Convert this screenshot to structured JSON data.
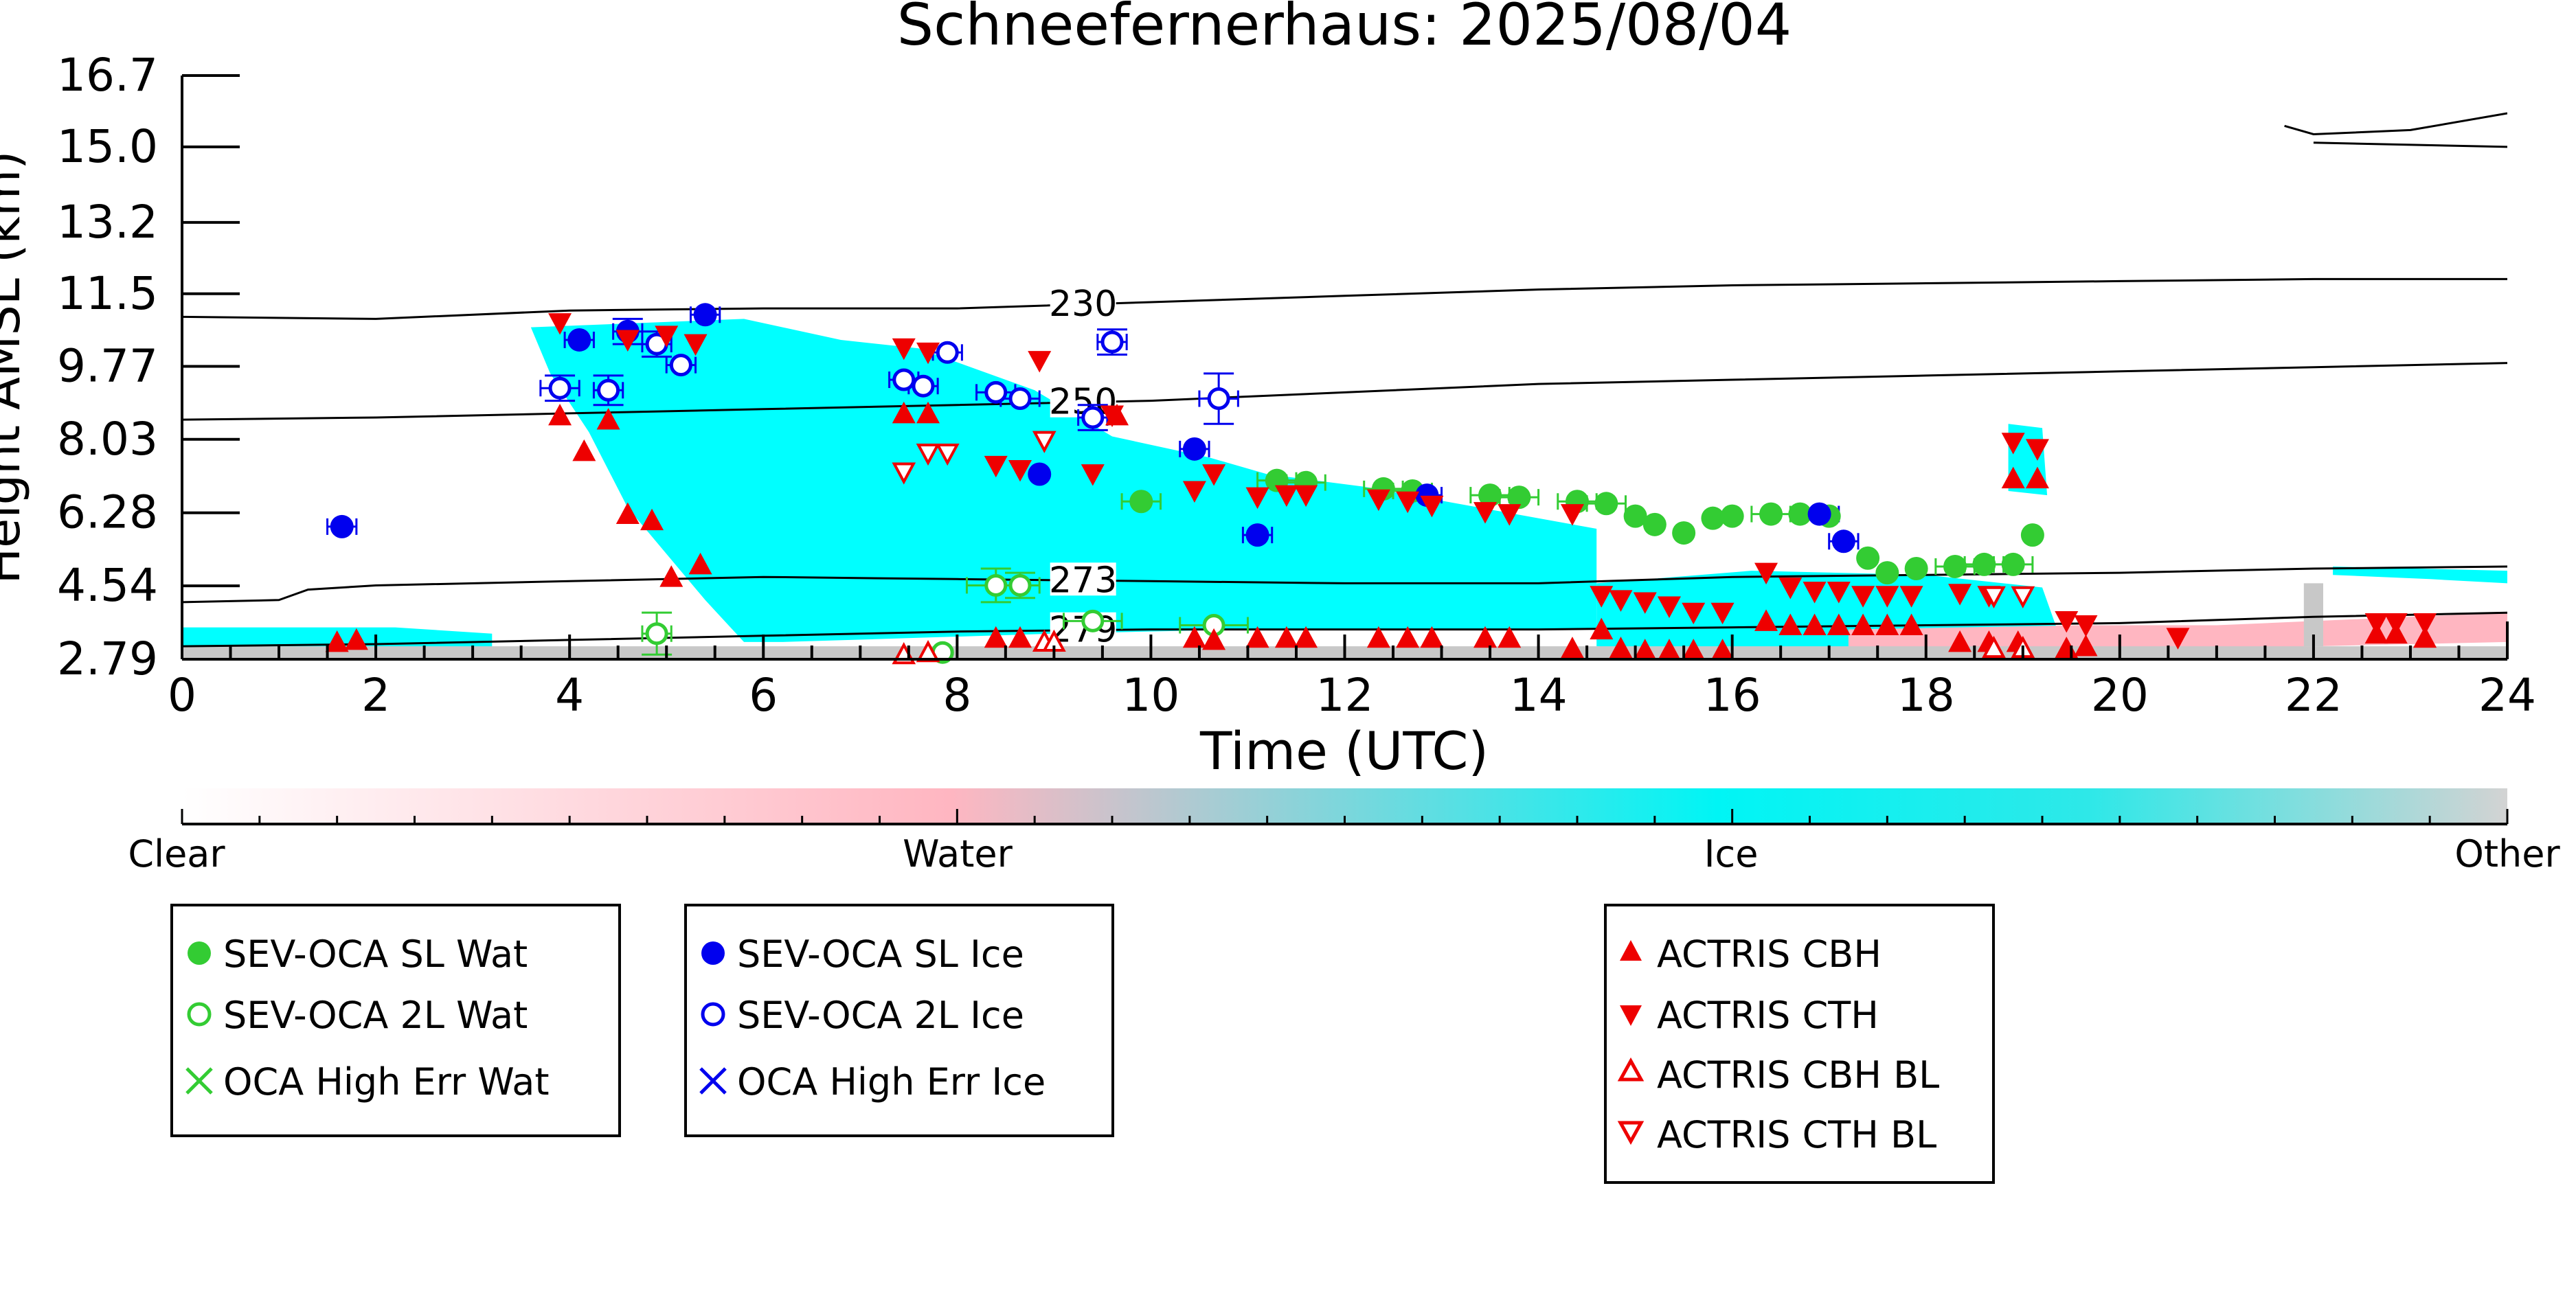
{
  "chart_data": {
    "type": "scatter",
    "title": "Schneefernerhaus: 2025/08/04",
    "xlabel": "Time (UTC)",
    "ylabel": "Height AMSL (km)",
    "xlim": [
      0,
      24
    ],
    "ylim": [
      2.79,
      16.7
    ],
    "x_ticks": [
      0,
      2,
      4,
      6,
      8,
      10,
      12,
      14,
      16,
      18,
      20,
      22,
      24
    ],
    "y_ticks": [
      2.79,
      4.54,
      6.28,
      8.03,
      9.77,
      11.5,
      13.2,
      15.0,
      16.7
    ],
    "y_tick_labels": [
      "2.79",
      "4.54",
      "6.28",
      "8.03",
      "9.77",
      "11.5",
      "13.2",
      "15.0",
      "16.7"
    ],
    "grid": false,
    "colorbar": {
      "labels": [
        "Clear",
        "Water",
        "Ice",
        "Other"
      ],
      "colors": [
        "#ffffff",
        "#ffb6c1",
        "#00ffff",
        "#d3d3d3"
      ]
    },
    "background_field": {
      "description": "cloud phase classification",
      "colors": {
        "water": "#ffb6c1",
        "ice": "#00ffff",
        "other": "#c8c8c8"
      }
    },
    "contours": [
      {
        "label": "230",
        "label_x": 9.3,
        "x": [
          0,
          2,
          4,
          6,
          8,
          10,
          12,
          14,
          16,
          18,
          20,
          22,
          24
        ],
        "y": [
          10.95,
          10.9,
          11.1,
          11.15,
          11.15,
          11.3,
          11.45,
          11.6,
          11.7,
          11.75,
          11.8,
          11.85,
          11.85
        ]
      },
      {
        "label": "250",
        "label_x": 9.3,
        "x": [
          0,
          2,
          4,
          6,
          8,
          10,
          12,
          14,
          16,
          18,
          20,
          22,
          24
        ],
        "y": [
          8.5,
          8.55,
          8.65,
          8.75,
          8.85,
          8.95,
          9.15,
          9.35,
          9.45,
          9.55,
          9.65,
          9.75,
          9.85
        ]
      },
      {
        "label": "273",
        "label_x": 9.3,
        "x": [
          0,
          1,
          1.3,
          2,
          4,
          6,
          8,
          10,
          12,
          14,
          16,
          18,
          20,
          22,
          24
        ],
        "y": [
          4.15,
          4.2,
          4.45,
          4.55,
          4.65,
          4.75,
          4.7,
          4.65,
          4.6,
          4.6,
          4.75,
          4.8,
          4.85,
          4.95,
          5.0
        ]
      },
      {
        "label": "279",
        "label_x": 9.3,
        "x": [
          0,
          2,
          4,
          6,
          8,
          10,
          12,
          14,
          16,
          18,
          20,
          22,
          24
        ],
        "y": [
          3.1,
          3.15,
          3.25,
          3.35,
          3.45,
          3.5,
          3.5,
          3.5,
          3.55,
          3.6,
          3.65,
          3.8,
          3.9
        ]
      },
      {
        "label": "",
        "x": [
          21.7,
          22,
          23,
          24
        ],
        "y": [
          15.5,
          15.3,
          15.4,
          15.8
        ]
      },
      {
        "label": "",
        "x": [
          22,
          24
        ],
        "y": [
          15.1,
          15.0
        ]
      }
    ],
    "legend_boxes": [
      [
        "SEV-OCA SL Wat",
        "SEV-OCA 2L Wat",
        "OCA High Err Wat"
      ],
      [
        "SEV-OCA SL Ice",
        "SEV-OCA 2L Ice",
        "OCA High Err Ice"
      ],
      [
        "ACTRIS CBH",
        "ACTRIS CTH",
        "ACTRIS CBH BL",
        "ACTRIS CTH BL"
      ]
    ],
    "series": [
      {
        "name": "SEV-OCA SL Wat",
        "marker": "filled-circle",
        "color": "#33cc33",
        "x": [
          9.9,
          11.3,
          11.6,
          12.4,
          12.7,
          13.5,
          13.8,
          14.4,
          14.7,
          15.0,
          15.2,
          15.5,
          15.8,
          16.0,
          16.4,
          16.7,
          17.0,
          17.4,
          17.6,
          17.9,
          18.3,
          18.6,
          18.9,
          19.1
        ],
        "y": [
          6.55,
          7.05,
          7.0,
          6.85,
          6.8,
          6.7,
          6.65,
          6.55,
          6.5,
          6.2,
          6.0,
          5.8,
          6.15,
          6.2,
          6.25,
          6.25,
          6.2,
          5.2,
          4.85,
          4.95,
          5.0,
          5.05,
          5.05,
          5.75
        ]
      },
      {
        "name": "SEV-OCA 2L Wat",
        "marker": "open-circle",
        "color": "#33cc33",
        "x": [
          4.9,
          7.85,
          8.4,
          8.65,
          9.4,
          10.65
        ],
        "y": [
          3.4,
          2.95,
          4.55,
          4.55,
          3.7,
          3.6
        ]
      },
      {
        "name": "OCA High Err Wat",
        "marker": "x",
        "color": "#33cc33",
        "x": [],
        "y": []
      },
      {
        "name": "SEV-OCA SL Ice",
        "marker": "filled-circle",
        "color": "#0000ee",
        "x": [
          1.65,
          4.1,
          4.6,
          5.4,
          8.85,
          10.45,
          11.1,
          12.85,
          16.9,
          17.15
        ],
        "y": [
          5.95,
          10.4,
          10.6,
          11.0,
          7.2,
          7.8,
          5.75,
          6.7,
          6.25,
          5.6
        ]
      },
      {
        "name": "SEV-OCA 2L Ice",
        "marker": "open-circle",
        "color": "#0000ee",
        "x": [
          3.9,
          4.4,
          4.9,
          5.15,
          7.45,
          7.65,
          7.9,
          8.4,
          8.65,
          9.4,
          9.6,
          10.7
        ],
        "y": [
          9.25,
          9.2,
          10.3,
          9.8,
          9.45,
          9.3,
          10.1,
          9.15,
          9.0,
          8.55,
          10.35,
          9.0
        ]
      },
      {
        "name": "OCA High Err Ice",
        "marker": "x",
        "color": "#0000ee",
        "x": [],
        "y": []
      },
      {
        "name": "ACTRIS CBH",
        "marker": "triangle-up",
        "color": "#ee0000",
        "x": [
          1.6,
          1.8,
          3.9,
          4.15,
          4.4,
          4.6,
          4.85,
          5.05,
          5.35,
          7.45,
          7.7,
          8.4,
          8.65,
          9.65,
          10.45,
          10.65,
          11.1,
          11.4,
          11.6,
          12.35,
          12.65,
          12.9,
          13.45,
          13.7,
          14.35,
          14.65,
          14.85,
          15.1,
          15.35,
          15.6,
          15.9,
          16.35,
          16.6,
          16.85,
          17.1,
          17.35,
          17.6,
          17.85,
          18.35,
          18.65,
          18.9,
          18.95,
          19.15,
          19.45,
          19.65,
          22.65,
          22.85,
          23.15
        ],
        "y": [
          3.2,
          3.25,
          8.6,
          7.75,
          8.5,
          6.25,
          6.1,
          4.75,
          5.05,
          8.65,
          8.65,
          3.3,
          3.3,
          8.6,
          3.3,
          3.25,
          3.3,
          3.3,
          3.3,
          3.3,
          3.3,
          3.3,
          3.3,
          3.3,
          3.05,
          3.5,
          3.05,
          3.0,
          3.0,
          3.0,
          3.0,
          3.7,
          3.6,
          3.6,
          3.6,
          3.6,
          3.6,
          3.6,
          3.2,
          3.2,
          7.1,
          3.2,
          7.1,
          3.05,
          3.1,
          3.4,
          3.4,
          3.3
        ]
      },
      {
        "name": "ACTRIS CTH",
        "marker": "triangle-down",
        "color": "#ee0000",
        "x": [
          3.9,
          4.6,
          5.0,
          5.3,
          7.45,
          7.7,
          8.4,
          8.65,
          8.85,
          9.4,
          9.6,
          10.45,
          10.65,
          11.1,
          11.4,
          11.6,
          12.35,
          12.65,
          12.9,
          13.45,
          13.7,
          14.35,
          14.65,
          14.85,
          15.1,
          15.35,
          15.6,
          15.9,
          16.35,
          16.6,
          16.85,
          17.1,
          17.35,
          17.6,
          17.85,
          18.35,
          18.65,
          18.9,
          19.15,
          19.45,
          19.65,
          20.6,
          22.65,
          22.85,
          23.15
        ],
        "y": [
          10.8,
          10.4,
          10.5,
          10.3,
          10.2,
          10.1,
          7.4,
          7.3,
          9.9,
          7.2,
          8.6,
          6.8,
          7.2,
          6.65,
          6.7,
          6.7,
          6.6,
          6.55,
          6.45,
          6.3,
          6.25,
          6.25,
          4.3,
          4.2,
          4.15,
          4.05,
          3.9,
          3.9,
          4.85,
          4.5,
          4.4,
          4.4,
          4.3,
          4.3,
          4.3,
          4.35,
          4.3,
          7.95,
          7.8,
          3.7,
          3.6,
          3.3,
          3.65,
          3.65,
          3.65
        ]
      },
      {
        "name": "ACTRIS CBH BL",
        "marker": "open-triangle-up",
        "color": "#ee0000",
        "x": [
          7.45,
          7.7,
          8.9,
          9.0,
          18.7,
          19.0
        ],
        "y": [
          2.9,
          2.95,
          3.2,
          3.2,
          3.05,
          3.05
        ]
      },
      {
        "name": "ACTRIS CTH BL",
        "marker": "open-triangle-down",
        "color": "#ee0000",
        "x": [
          7.45,
          7.7,
          7.9,
          8.9,
          18.7,
          19.0
        ],
        "y": [
          7.25,
          7.7,
          7.7,
          8.0,
          4.3,
          4.3
        ]
      }
    ],
    "error_bars": [
      {
        "x": 1.65,
        "y": 5.95,
        "xerr": 0.15
      },
      {
        "x": 3.9,
        "y": 9.25,
        "xerr": 0.2,
        "yerr": 0.3
      },
      {
        "x": 4.1,
        "y": 10.4,
        "xerr": 0.15
      },
      {
        "x": 4.4,
        "y": 9.2,
        "xerr": 0.15,
        "yerr": 0.35
      },
      {
        "x": 4.6,
        "y": 10.6,
        "xerr": 0.15,
        "yerr": 0.3
      },
      {
        "x": 4.9,
        "y": 10.3,
        "xerr": 0.15,
        "yerr": 0.3
      },
      {
        "x": 4.9,
        "y": 3.4,
        "xerr": 0.15,
        "yerr": 0.5
      },
      {
        "x": 5.15,
        "y": 9.8,
        "xerr": 0.15
      },
      {
        "x": 5.4,
        "y": 11.0,
        "xerr": 0.15
      },
      {
        "x": 7.45,
        "y": 9.45,
        "xerr": 0.15
      },
      {
        "x": 7.65,
        "y": 9.3,
        "xerr": 0.15
      },
      {
        "x": 7.9,
        "y": 10.1,
        "xerr": 0.15
      },
      {
        "x": 8.4,
        "y": 9.15,
        "xerr": 0.2
      },
      {
        "x": 8.4,
        "y": 4.55,
        "xerr": 0.3,
        "yerr": 0.4
      },
      {
        "x": 8.65,
        "y": 9.0,
        "xerr": 0.2
      },
      {
        "x": 8.65,
        "y": 4.55,
        "xerr": 0.2,
        "yerr": 0.3
      },
      {
        "x": 9.4,
        "y": 8.55,
        "xerr": 0.15,
        "yerr": 0.3
      },
      {
        "x": 9.6,
        "y": 10.35,
        "xerr": 0.15,
        "yerr": 0.3
      },
      {
        "x": 10.7,
        "y": 9.0,
        "xerr": 0.2,
        "yerr": 0.6
      },
      {
        "x": 10.65,
        "y": 3.6,
        "xerr": 0.35
      },
      {
        "x": 11.3,
        "y": 7.05,
        "xerr": 0.2
      },
      {
        "x": 11.6,
        "y": 7.0,
        "xerr": 0.2
      },
      {
        "x": 12.4,
        "y": 6.85,
        "xerr": 0.2
      },
      {
        "x": 12.7,
        "y": 6.8,
        "xerr": 0.2
      },
      {
        "x": 13.5,
        "y": 6.7,
        "xerr": 0.2
      },
      {
        "x": 13.8,
        "y": 6.65,
        "xerr": 0.2
      },
      {
        "x": 14.4,
        "y": 6.55,
        "xerr": 0.2
      },
      {
        "x": 14.7,
        "y": 6.5,
        "xerr": 0.2
      },
      {
        "x": 16.4,
        "y": 6.25,
        "xerr": 0.2
      },
      {
        "x": 16.9,
        "y": 6.25,
        "xerr": 0.2
      },
      {
        "x": 18.3,
        "y": 5.0,
        "xerr": 0.2
      },
      {
        "x": 18.6,
        "y": 5.05,
        "xerr": 0.2
      },
      {
        "x": 18.9,
        "y": 5.05,
        "xerr": 0.2
      },
      {
        "x": 9.9,
        "y": 6.55,
        "xerr": 0.2
      },
      {
        "x": 10.45,
        "y": 7.8,
        "xerr": 0.15
      },
      {
        "x": 11.1,
        "y": 5.75,
        "xerr": 0.15
      },
      {
        "x": 12.85,
        "y": 6.7,
        "xerr": 0.15
      },
      {
        "x": 17.15,
        "y": 5.6,
        "xerr": 0.15
      },
      {
        "x": 9.4,
        "y": 3.7,
        "xerr": 0.3
      }
    ]
  }
}
